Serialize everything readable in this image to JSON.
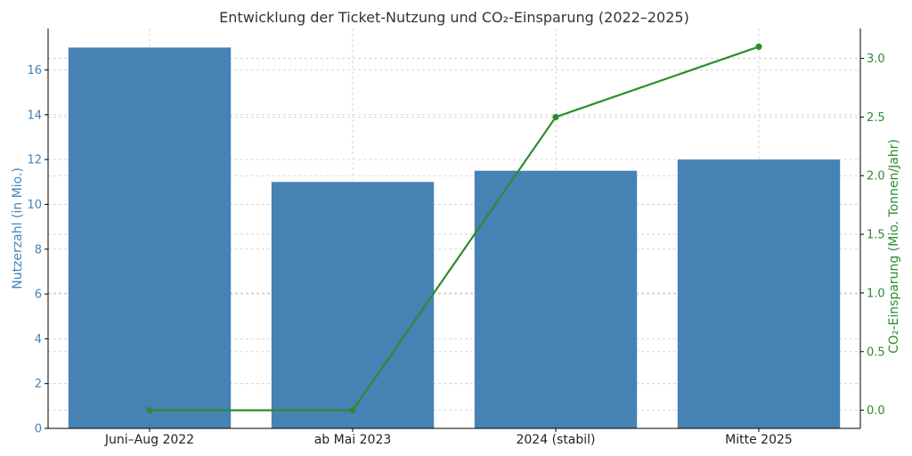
{
  "chart_data": {
    "type": "bar",
    "title": "Entwicklung der Ticket-Nutzung und CO₂-Einsparung (2022–2025)",
    "categories": [
      "Juni–Aug 2022",
      "ab Mai 2023",
      "2024 (stabil)",
      "Mitte 2025"
    ],
    "series": [
      {
        "name": "Nutzerzahl (in Mio.)",
        "type": "bar",
        "axis": "left",
        "color": "#4682b4",
        "values": [
          17,
          11,
          11.5,
          12
        ]
      },
      {
        "name": "CO₂-Einsparung (Mio. Tonnen/Jahr)",
        "type": "line",
        "axis": "right",
        "color": "#2e8b2e",
        "values": [
          0.0,
          0.0,
          2.5,
          3.1
        ]
      }
    ],
    "ylabel": "Nutzerzahl (in Mio.)",
    "y2label": "CO₂-Einsparung (Mio. Tonnen/Jahr)",
    "ylim": [
      0,
      17.85
    ],
    "y2lim": [
      -0.155,
      3.255
    ],
    "yticks": [
      "0",
      "2",
      "4",
      "6",
      "8",
      "10",
      "12",
      "14",
      "16"
    ],
    "y2ticks": [
      "0.0",
      "0.5",
      "1.0",
      "1.5",
      "2.0",
      "2.5",
      "3.0"
    ],
    "grid": true
  }
}
